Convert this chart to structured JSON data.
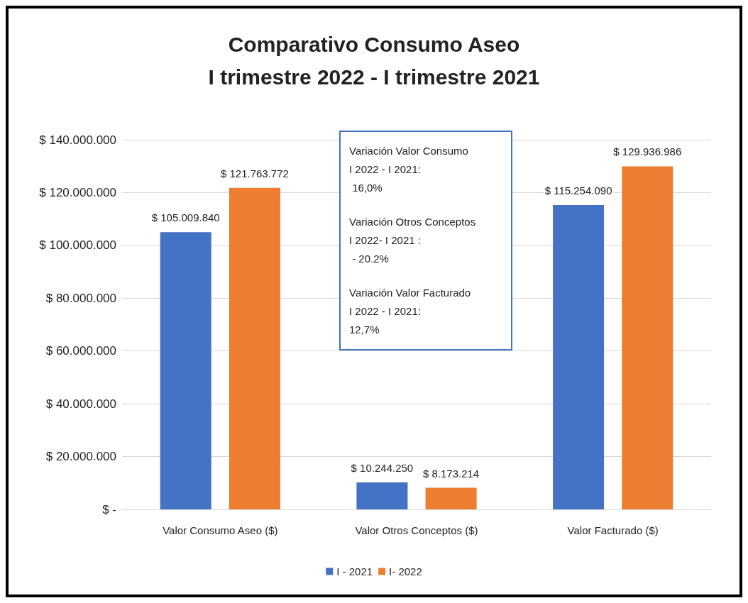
{
  "chart_data": {
    "type": "bar",
    "title": "Comparativo Consumo Aseo\nI trimestre 2022 - I trimestre 2021",
    "categories": [
      "Valor Consumo Aseo ($)",
      "Valor Otros Conceptos ($)",
      "Valor Facturado ($)"
    ],
    "series": [
      {
        "name": "I - 2021",
        "color": "#4472c4",
        "values": [
          105009840,
          10244250,
          115254090
        ],
        "value_labels": [
          "$ 105.009.840",
          "$ 10.244.250",
          "$ 115.254.090"
        ]
      },
      {
        "name": "I- 2022",
        "color": "#ed7d31",
        "values": [
          121763772,
          8173214,
          129936986
        ],
        "value_labels": [
          "$ 121.763.772",
          "$ 8.173.214",
          "$ 129.936.986"
        ]
      }
    ],
    "ylim": [
      0,
      140000000
    ],
    "yticks": [
      {
        "value": 0,
        "label": "$ -"
      },
      {
        "value": 20000000,
        "label": "$ 20.000.000"
      },
      {
        "value": 40000000,
        "label": "$ 40.000.000"
      },
      {
        "value": 60000000,
        "label": "$ 60.000.000"
      },
      {
        "value": 80000000,
        "label": "$ 80.000.000"
      },
      {
        "value": 100000000,
        "label": "$ 100.000.000"
      },
      {
        "value": 120000000,
        "label": "$ 120.000.000"
      },
      {
        "value": 140000000,
        "label": "$ 140.000.000"
      }
    ],
    "grid": "y",
    "legend": "bottom",
    "annotations": [
      "Variación Valor Consumo\nI 2022 - I 2021:\n 16,0%",
      "Variación Otros Conceptos\nI 2022- I 2021 :\n - 20.2%",
      "Variación Valor Facturado\nI 2022 - I 2021:\n12,7%"
    ]
  }
}
